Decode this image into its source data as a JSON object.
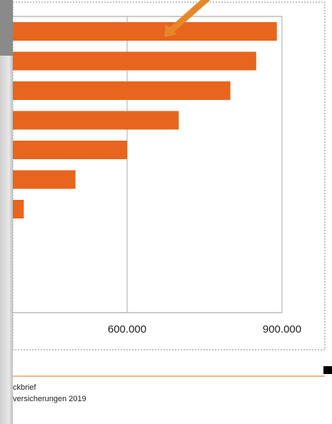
{
  "chart_data": {
    "type": "bar",
    "orientation": "horizontal",
    "categories": [
      null,
      null,
      null,
      null,
      null,
      null,
      null
    ],
    "values": [
      890000,
      850000,
      800000,
      700000,
      600000,
      500000,
      400000
    ],
    "color": "#e8651e",
    "xlim": [
      0,
      900000
    ],
    "xticks": [
      {
        "value": 600000,
        "label": "600.000"
      },
      {
        "value": 900000,
        "label": "900.000"
      }
    ],
    "grid": true
  },
  "footer": [
    "ckbrief",
    "versicherungen  2019"
  ]
}
